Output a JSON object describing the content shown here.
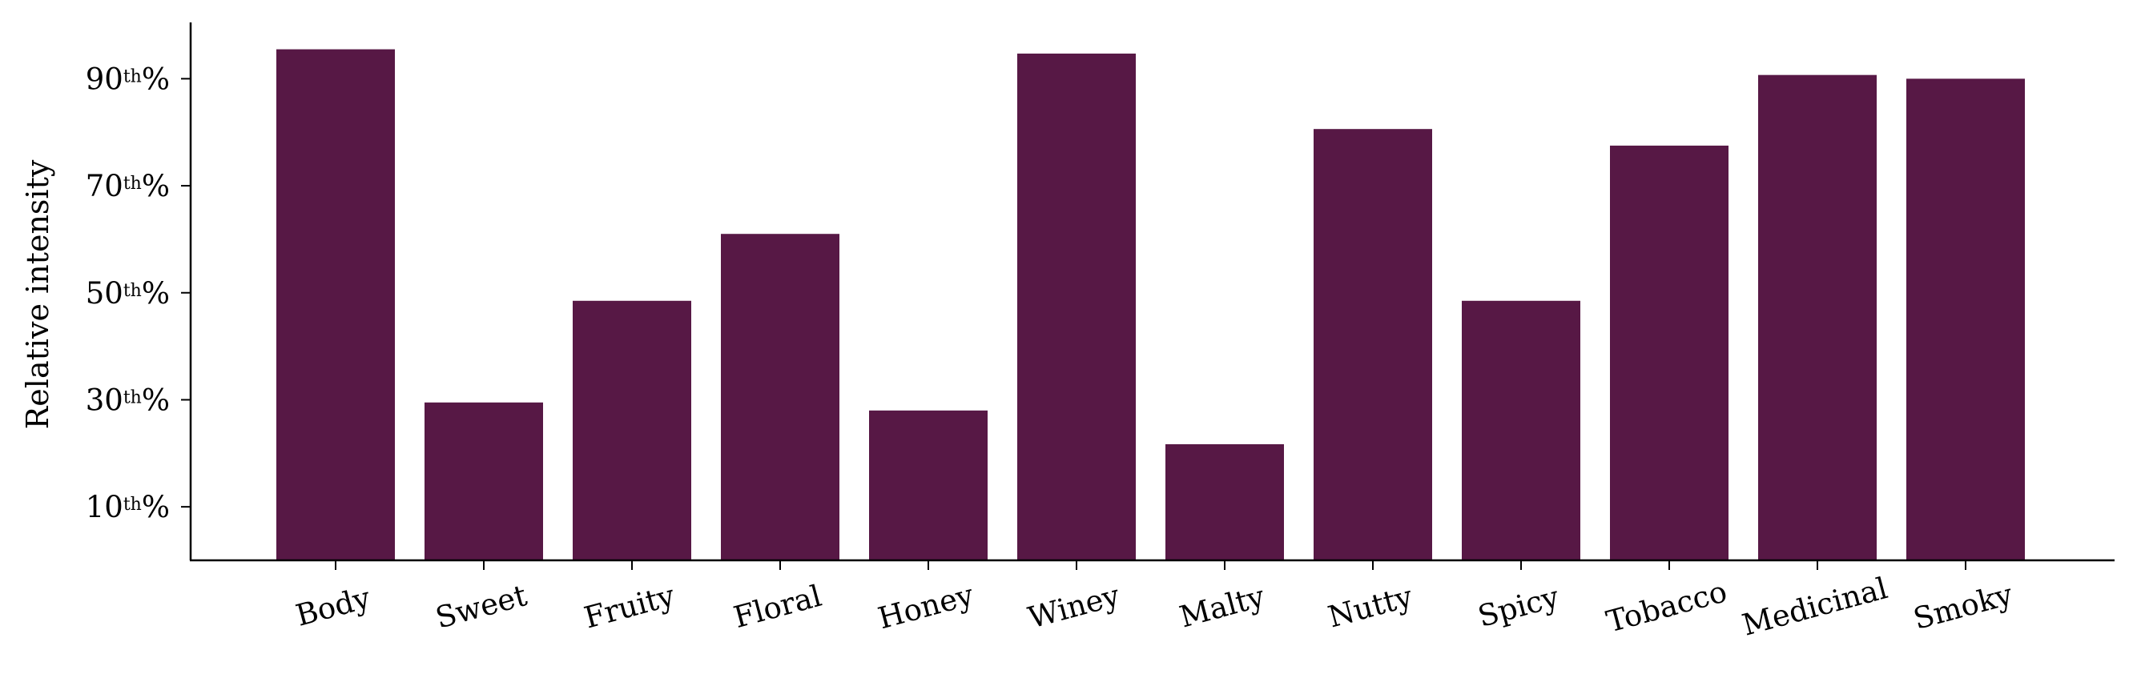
{
  "chart_data": {
    "type": "bar",
    "title": "",
    "xlabel": "",
    "ylabel": "Relative intensity",
    "ylim": [
      0,
      100
    ],
    "grid": false,
    "legend": "none",
    "bar_color": "#571845",
    "categories": [
      "Body",
      "Sweet",
      "Fruity",
      "Floral",
      "Honey",
      "Winey",
      "Malty",
      "Nutty",
      "Spicy",
      "Tobacco",
      "Medicinal",
      "Smoky"
    ],
    "values": [
      95.5,
      29.5,
      48.5,
      61.0,
      28.0,
      94.7,
      21.7,
      80.6,
      48.5,
      77.5,
      90.7,
      90.0
    ],
    "yticks": [
      {
        "value": 10,
        "num": "10",
        "sup": "th",
        "pct": "%"
      },
      {
        "value": 30,
        "num": "30",
        "sup": "th",
        "pct": "%"
      },
      {
        "value": 50,
        "num": "50",
        "sup": "th",
        "pct": "%"
      },
      {
        "value": 70,
        "num": "70",
        "sup": "th",
        "pct": "%"
      },
      {
        "value": 90,
        "num": "90",
        "sup": "th",
        "pct": "%"
      }
    ]
  }
}
